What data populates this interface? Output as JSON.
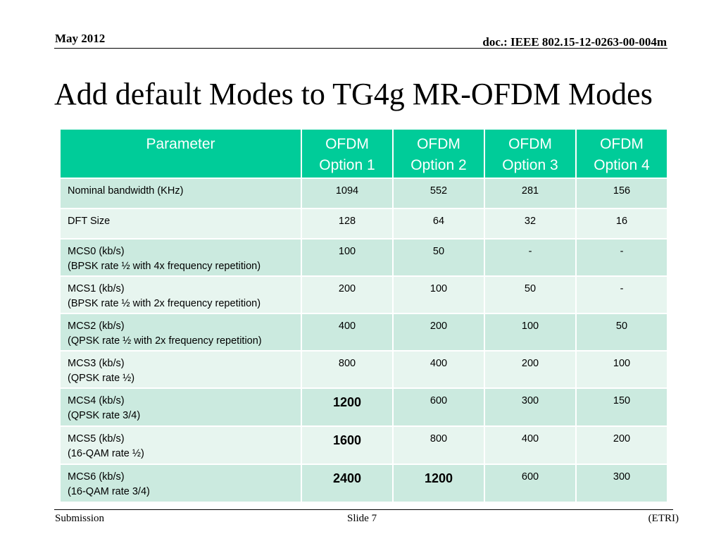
{
  "header": {
    "date": "May 2012",
    "doc_id": "doc.: IEEE 802.15-12-0263-00-004m"
  },
  "title": "Add default Modes to TG4g MR-OFDM Modes",
  "table": {
    "columns": [
      "Parameter",
      "OFDM\nOption 1",
      "OFDM\nOption 2",
      "OFDM\nOption 3",
      "OFDM\nOption 4"
    ],
    "rows": [
      {
        "param": "Nominal bandwidth (KHz)",
        "values": [
          "1094",
          "552",
          "281",
          "156"
        ],
        "bold": [
          false,
          false,
          false,
          false
        ]
      },
      {
        "param": "DFT Size",
        "values": [
          "128",
          "64",
          "32",
          "16"
        ],
        "bold": [
          false,
          false,
          false,
          false
        ]
      },
      {
        "param": "MCS0 (kb/s)\n(BPSK rate ½ with 4x frequency repetition)",
        "values": [
          "100",
          "50",
          "-",
          "-"
        ],
        "bold": [
          false,
          false,
          false,
          false
        ]
      },
      {
        "param": "MCS1 (kb/s)\n(BPSK rate ½ with 2x frequency repetition)",
        "values": [
          "200",
          "100",
          "50",
          "-"
        ],
        "bold": [
          false,
          false,
          false,
          false
        ]
      },
      {
        "param": "MCS2 (kb/s)\n(QPSK rate ½ with 2x frequency repetition)",
        "values": [
          "400",
          "200",
          "100",
          "50"
        ],
        "bold": [
          false,
          false,
          false,
          false
        ]
      },
      {
        "param": "MCS3 (kb/s)\n(QPSK rate ½)",
        "values": [
          "800",
          "400",
          "200",
          "100"
        ],
        "bold": [
          false,
          false,
          false,
          false
        ]
      },
      {
        "param": "MCS4 (kb/s)\n(QPSK rate 3/4)",
        "values": [
          "1200",
          "600",
          "300",
          "150"
        ],
        "bold": [
          true,
          false,
          false,
          false
        ]
      },
      {
        "param": "MCS5 (kb/s)\n(16-QAM rate ½)",
        "values": [
          "1600",
          "800",
          "400",
          "200"
        ],
        "bold": [
          true,
          false,
          false,
          false
        ]
      },
      {
        "param": "MCS6 (kb/s)\n(16-QAM rate 3/4)",
        "values": [
          "2400",
          "1200",
          "600",
          "300"
        ],
        "bold": [
          true,
          true,
          false,
          false
        ]
      }
    ]
  },
  "footer": {
    "left": "Submission",
    "center": "Slide 7",
    "right": "(ETRI)"
  },
  "colors": {
    "header_fill": "#00cc99",
    "row_dark": "#cbeadf",
    "row_light": "#e7f5ef"
  }
}
